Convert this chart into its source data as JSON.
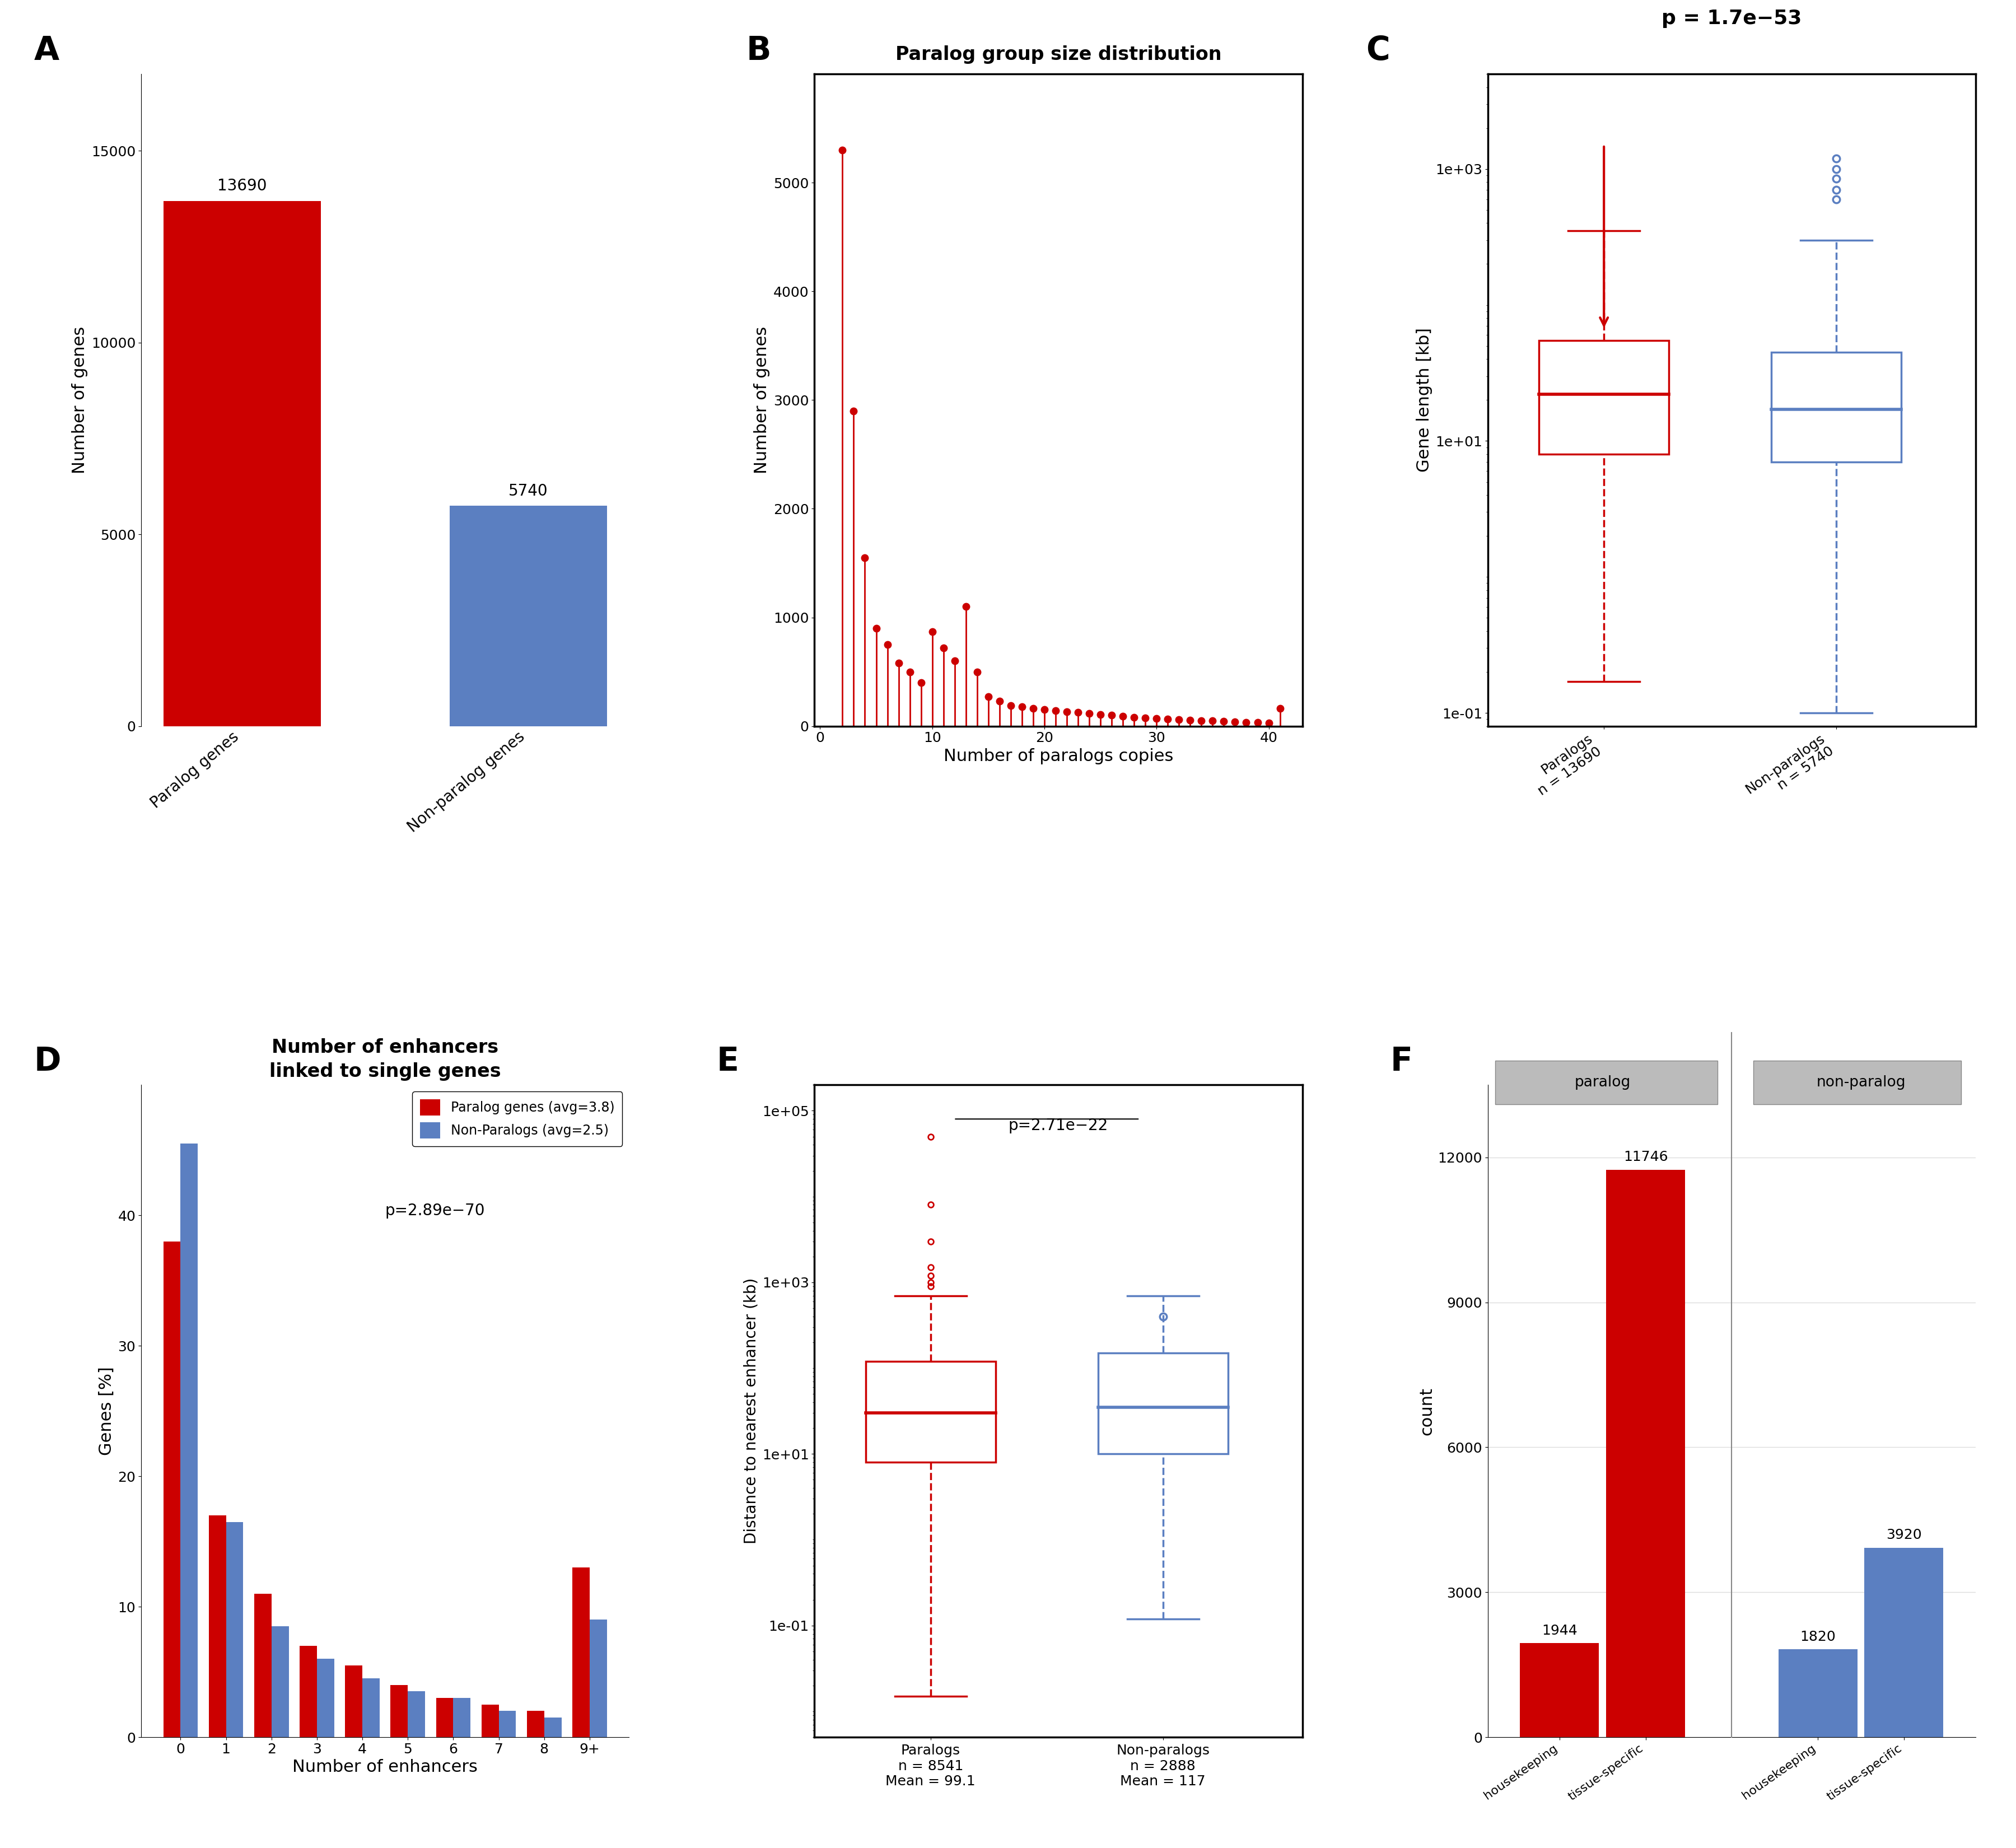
{
  "panel_A": {
    "categories": [
      "Paralog genes",
      "Non-paralog genes"
    ],
    "values": [
      13690,
      5740
    ],
    "colors": [
      "#CC0000",
      "#5B7FC1"
    ],
    "ylabel": "Number of genes",
    "ylim": [
      0,
      17000
    ],
    "yticks": [
      0,
      5000,
      10000,
      15000
    ],
    "bar_labels": [
      "13690",
      "5740"
    ]
  },
  "panel_B": {
    "title": "Paralog group size distribution",
    "xlabel": "Number of paralogs copies",
    "ylabel": "Number of genes",
    "x": [
      2,
      3,
      4,
      5,
      6,
      7,
      8,
      9,
      10,
      11,
      12,
      13,
      14,
      15,
      16,
      17,
      18,
      19,
      20,
      21,
      22,
      23,
      24,
      25,
      26,
      27,
      28,
      29,
      30,
      31,
      32,
      33,
      34,
      35,
      36,
      37,
      38,
      39,
      40,
      41
    ],
    "y": [
      5300,
      2900,
      1550,
      900,
      750,
      580,
      500,
      400,
      870,
      720,
      600,
      1100,
      500,
      270,
      230,
      190,
      180,
      165,
      155,
      145,
      135,
      125,
      115,
      105,
      100,
      90,
      82,
      75,
      70,
      65,
      60,
      55,
      50,
      48,
      44,
      40,
      35,
      32,
      28,
      165
    ],
    "color": "#CC0000",
    "ylim": [
      0,
      6000
    ],
    "yticks": [
      0,
      1000,
      2000,
      3000,
      4000,
      5000
    ],
    "xticks": [
      0,
      10,
      20,
      30,
      40
    ]
  },
  "panel_C": {
    "pvalue": "p = 1.7e−53",
    "ylabel": "Gene length [kb]",
    "paralog_median": 22,
    "paralog_q1": 8,
    "paralog_q3": 55,
    "paralog_whisker_low": 0.17,
    "paralog_whisker_high": 350,
    "paralog_outlier_high": 1500,
    "nonparalog_median": 17,
    "nonparalog_q1": 7,
    "nonparalog_q3": 45,
    "nonparalog_whisker_low": 0.1,
    "nonparalog_whisker_high": 300,
    "nonparalog_outlier_high": 1200,
    "xlabels": [
      "Paralogs\nn = 13690",
      "Non-paralogs\nn = 5740"
    ],
    "paralog_color": "#CC0000",
    "nonparalog_color": "#5B7FC1",
    "ylim_log": [
      0.08,
      5000
    ],
    "ytick_labels": [
      "1e-01",
      "1e+01",
      "1e+03"
    ]
  },
  "panel_D": {
    "title": "Number of enhancers\nlinked to single genes",
    "xlabel": "Number of enhancers",
    "ylabel": "Genes [%]",
    "categories": [
      "0",
      "1",
      "2",
      "3",
      "4",
      "5",
      "6",
      "7",
      "8",
      "9+"
    ],
    "paralog_vals": [
      38.0,
      17.0,
      11.0,
      7.0,
      5.5,
      4.0,
      3.0,
      2.5,
      2.0,
      13.0
    ],
    "nonparalog_vals": [
      45.5,
      16.5,
      8.5,
      6.0,
      4.5,
      3.5,
      3.0,
      2.0,
      1.5,
      9.0
    ],
    "paralog_color": "#CC0000",
    "nonparalog_color": "#5B7FC1",
    "pvalue": "p=2.89e−70",
    "legend_paralog": "Paralog genes (avg=3.8)",
    "legend_nonparalog": "Non-Paralogs (avg=2.5)",
    "ylim": [
      0,
      50
    ],
    "yticks": [
      0,
      10,
      20,
      30,
      40
    ]
  },
  "panel_E": {
    "pvalue": "p=2.71e−22",
    "ylabel": "Distance to nearest enhancer (kb)",
    "paralog_median": 30,
    "paralog_q1": 8,
    "paralog_q3": 120,
    "paralog_whisker_low": 0.015,
    "paralog_whisker_high": 700,
    "paralog_outliers": [
      50000,
      8000,
      3000,
      1500,
      1200,
      1000,
      900
    ],
    "nonparalog_median": 35,
    "nonparalog_q1": 10,
    "nonparalog_q3": 150,
    "nonparalog_whisker_low": 0.12,
    "nonparalog_whisker_high": 700,
    "nonparalog_outliers": [
      400
    ],
    "xlabels_line1": [
      "Paralogs",
      "Non-paralogs"
    ],
    "xlabels_line2": [
      "n = 8541",
      "n = 2888"
    ],
    "xlabels_line3": [
      "Mean = 99.1",
      "Mean = 117"
    ],
    "paralog_color": "#CC0000",
    "nonparalog_color": "#5B7FC1",
    "ylim_log": [
      0.005,
      200000
    ],
    "ytick_labels": [
      "1e-01",
      "1e+01",
      "1e+03",
      "1e+05"
    ]
  },
  "panel_F": {
    "values": [
      1944,
      11746,
      1820,
      3920
    ],
    "colors": [
      "#CC0000",
      "#CC0000",
      "#5B7FC1",
      "#5B7FC1"
    ],
    "ylabel": "count",
    "ylim": [
      0,
      13500
    ],
    "yticks": [
      0,
      3000,
      6000,
      9000,
      12000
    ],
    "bar_labels": [
      "1944",
      "11746",
      "1820",
      "3920"
    ],
    "xtick_labels": [
      "housekeeping",
      "tissue-specific",
      "housekeeping",
      "tissue-specific"
    ],
    "group_labels": [
      "paralog",
      "non-paralog"
    ],
    "legend_paralog": "paralog",
    "legend_nonparalog": "non-paralog",
    "header_color": "#BBBBBB"
  }
}
